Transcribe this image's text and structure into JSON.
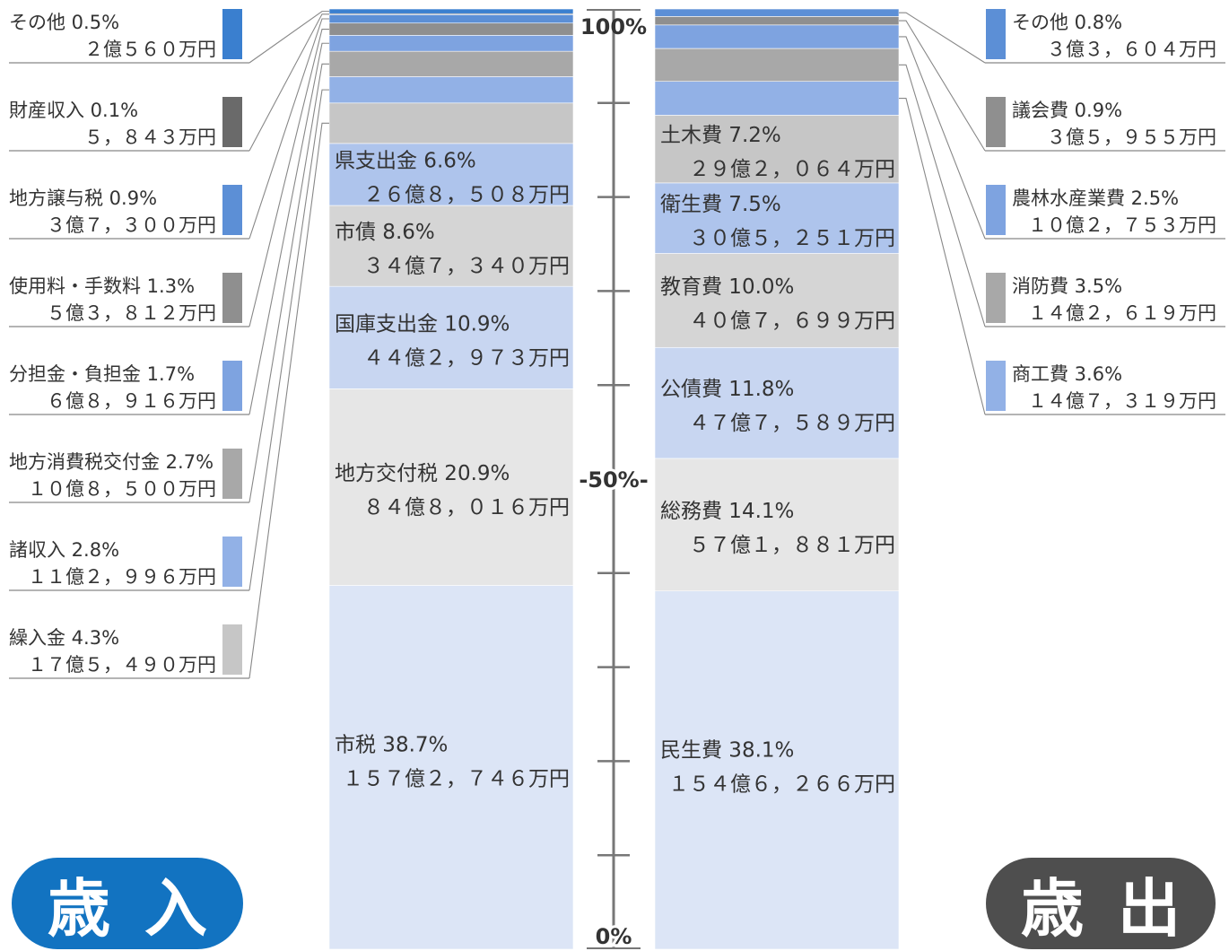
{
  "chart_data": [
    {
      "type": "bar",
      "stacked": true,
      "side": "left",
      "title": "歳入",
      "ylim": [
        0,
        100
      ],
      "segments": [
        {
          "label": "市税",
          "percent_text": "38.7%",
          "value": 38.7,
          "amount": "１５７億２，７４６万円",
          "color": "#dce5f6"
        },
        {
          "label": "地方交付税",
          "percent_text": "20.9%",
          "value": 20.9,
          "amount": "８４億８，０１６万円",
          "color": "#e6e6e6"
        },
        {
          "label": "国庫支出金",
          "percent_text": "10.9%",
          "value": 10.9,
          "amount": "４４億２，９７３万円",
          "color": "#c8d6f1"
        },
        {
          "label": "市債",
          "percent_text": "8.6%",
          "value": 8.6,
          "amount": "３４億７，３４０万円",
          "color": "#d5d5d5"
        },
        {
          "label": "県支出金",
          "percent_text": "6.6%",
          "value": 6.6,
          "amount": "２６億８，５０８万円",
          "color": "#aec4ec"
        },
        {
          "label": "繰入金",
          "percent_text": "4.3%",
          "value": 4.3,
          "amount": "１７億５，４９０万円",
          "color": "#c6c6c6"
        },
        {
          "label": "諸収入",
          "percent_text": "2.8%",
          "value": 2.8,
          "amount": "１１億２，９９６万円",
          "color": "#92b1e6"
        },
        {
          "label": "地方消費税交付金",
          "percent_text": "2.7%",
          "value": 2.7,
          "amount": "１０億８，５００万円",
          "color": "#a8a8a8"
        },
        {
          "label": "分担金・負担金",
          "percent_text": "1.7%",
          "value": 1.7,
          "amount": "６億８，９１６万円",
          "color": "#7ea3e0"
        },
        {
          "label": "使用料・手数料",
          "percent_text": "1.3%",
          "value": 1.3,
          "amount": "５億３，８１２万円",
          "color": "#8f8f8f"
        },
        {
          "label": "地方譲与税",
          "percent_text": "0.9%",
          "value": 0.9,
          "amount": "３億７，３００万円",
          "color": "#5c8fd6"
        },
        {
          "label": "財産収入",
          "percent_text": "0.1%",
          "value": 0.1,
          "amount": "５，８４３万円",
          "color": "#6a6a6a"
        },
        {
          "label": "その他",
          "percent_text": "0.5%",
          "value": 0.5,
          "amount": "２億５６０万円",
          "color": "#3a7fcf"
        }
      ]
    },
    {
      "type": "bar",
      "stacked": true,
      "side": "right",
      "title": "歳出",
      "ylim": [
        0,
        100
      ],
      "segments": [
        {
          "label": "民生費",
          "percent_text": "38.1%",
          "value": 38.1,
          "amount": "１５４億６，２６６万円",
          "color": "#dce5f6"
        },
        {
          "label": "総務費",
          "percent_text": "14.1%",
          "value": 14.1,
          "amount": "５７億１，８８１万円",
          "color": "#e6e6e6"
        },
        {
          "label": "公債費",
          "percent_text": "11.8%",
          "value": 11.8,
          "amount": "４７億７，５８９万円",
          "color": "#c8d6f1"
        },
        {
          "label": "教育費",
          "percent_text": "10.0%",
          "value": 10.0,
          "amount": "４０億７，６９９万円",
          "color": "#d5d5d5"
        },
        {
          "label": "衛生費",
          "percent_text": "7.5%",
          "value": 7.5,
          "amount": "３０億５，２５１万円",
          "color": "#aec4ec"
        },
        {
          "label": "土木費",
          "percent_text": "7.2%",
          "value": 7.2,
          "amount": "２９億２，０６４万円",
          "color": "#c6c6c6"
        },
        {
          "label": "商工費",
          "percent_text": "3.6%",
          "value": 3.6,
          "amount": "１４億７，３１９万円",
          "color": "#92b1e6"
        },
        {
          "label": "消防費",
          "percent_text": "3.5%",
          "value": 3.5,
          "amount": "１４億２，６１９万円",
          "color": "#a8a8a8"
        },
        {
          "label": "農林水産業費",
          "percent_text": "2.5%",
          "value": 2.5,
          "amount": "１０億２，７５３万円",
          "color": "#7ea3e0"
        },
        {
          "label": "議会費",
          "percent_text": "0.9%",
          "value": 0.9,
          "amount": "３億５，９５５万円",
          "color": "#8f8f8f"
        },
        {
          "label": "その他",
          "percent_text": "0.8%",
          "value": 0.8,
          "amount": "３億３，６０４万円",
          "color": "#5c8fd6"
        }
      ]
    }
  ],
  "axis": {
    "top_label": "100%",
    "mid_label": "-50%-",
    "bottom_label": "0%",
    "major_ticks": [
      0,
      50,
      100
    ],
    "minor_step": 10
  },
  "titles": {
    "revenue": "歳入",
    "expenditure": "歳出"
  },
  "colors": {
    "revenue_title_bg": "#1273c1",
    "expenditure_title_bg": "#4e4e4e",
    "leader_line": "#888888",
    "axis": "#777777"
  }
}
